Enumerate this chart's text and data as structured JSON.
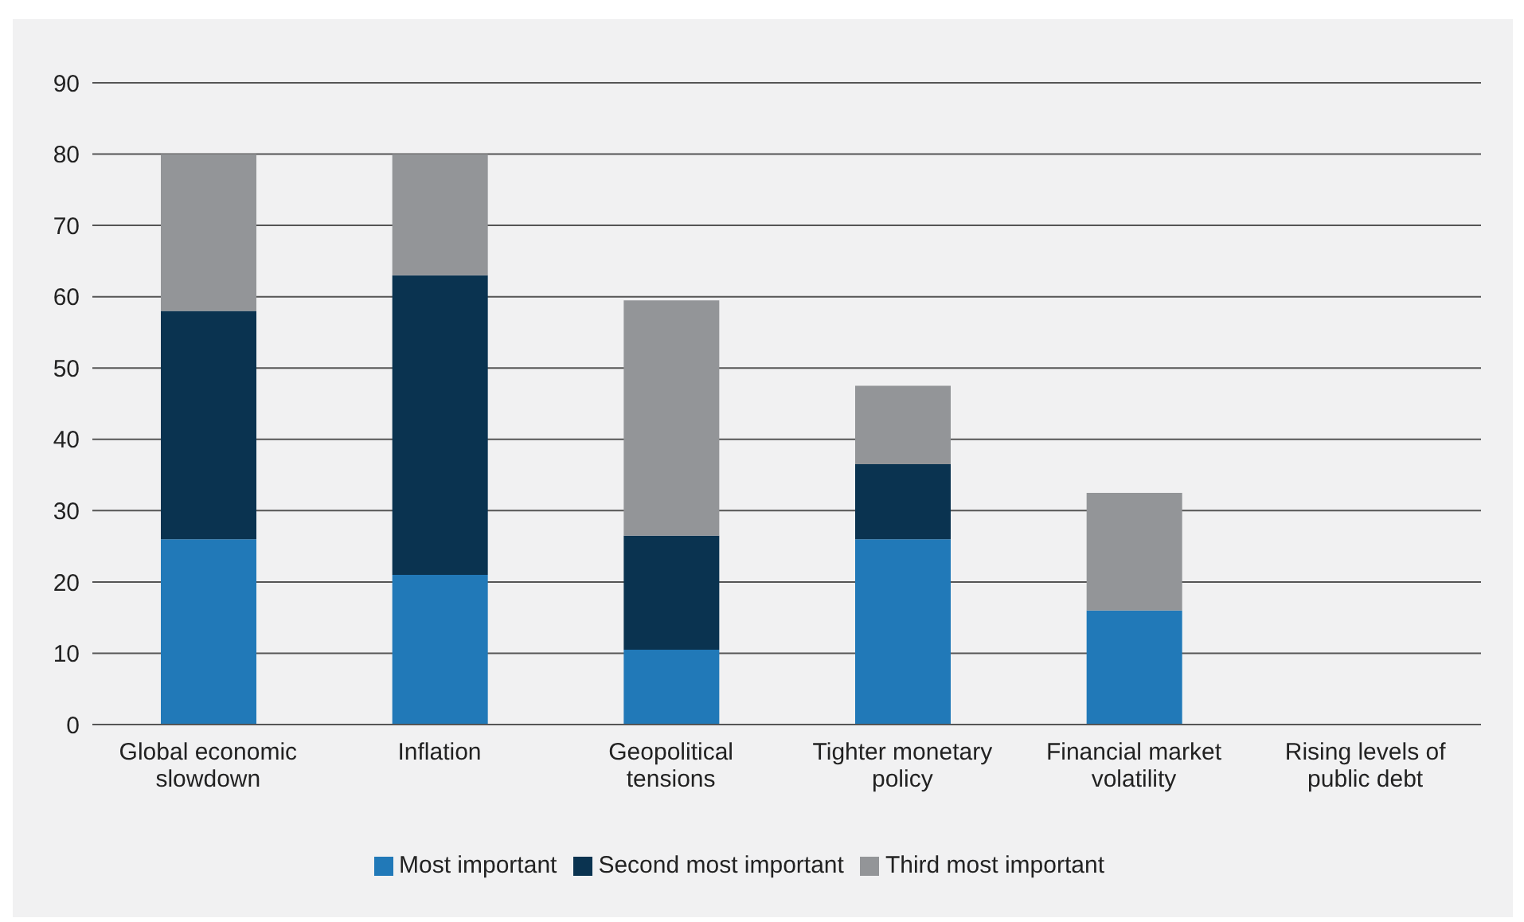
{
  "chart_data": {
    "type": "bar",
    "stacked": true,
    "categories": [
      "Global economic slowdown",
      "Inflation",
      "Geopolitical tensions",
      "Tighter monetary policy",
      "Financial market volatility",
      "Rising levels of public debt"
    ],
    "series": [
      {
        "name": "Most important",
        "color": "#2179b8",
        "values": [
          26,
          21,
          10.5,
          26,
          16,
          0
        ]
      },
      {
        "name": "Second most important",
        "color": "#0a3350",
        "values": [
          32,
          42,
          16,
          10.5,
          0,
          0
        ]
      },
      {
        "name": "Third most important",
        "color": "#939598",
        "values": [
          22,
          17,
          33,
          11,
          16.5,
          0
        ]
      }
    ],
    "ylim": [
      0,
      90
    ],
    "yticks": [
      0,
      10,
      20,
      30,
      40,
      50,
      60,
      70,
      80,
      90
    ],
    "grid": "y",
    "legend": "bottom"
  }
}
